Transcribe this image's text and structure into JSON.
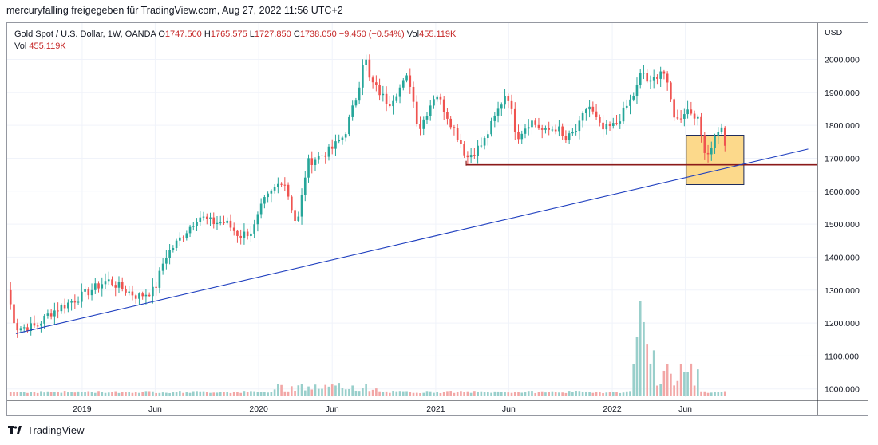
{
  "header": {
    "title": "mercuryfalling freigegeben für TradingView.com, Aug 27, 2022 11:56 UTC+2"
  },
  "legend": {
    "symbol": "Gold Spot / U.S. Dollar, 1W, OANDA",
    "o_label": "O",
    "o_value": "1747.500",
    "h_label": "H",
    "h_value": "1765.575",
    "l_label": "L",
    "l_value": "1727.850",
    "c_label": "C",
    "c_value": "1738.050",
    "change": "−9.450 (−0.54%)",
    "vol_label": "Vol",
    "vol_value": "455.119K",
    "vol2_label": "Vol",
    "vol2_value": "455.119K"
  },
  "footer": {
    "brand": "TradingView"
  },
  "colors": {
    "up": "#26a69a",
    "down": "#ef5350",
    "vol_up": "#99cfcb",
    "vol_down": "#f2a7a6",
    "trendline": "#1f3fbf",
    "support": "#8b1a1a",
    "zone_fill": "#fcd98b",
    "zone_border": "#1e2b5c",
    "grid": "#f0f3fa"
  },
  "chart_data": {
    "type": "candlestick",
    "currency": "USD",
    "y_ticks": [
      1000,
      1100,
      1200,
      1300,
      1400,
      1500,
      1600,
      1700,
      1800,
      1900,
      2000
    ],
    "y_tick_labels": [
      "1000.000",
      "1100.000",
      "1200.000",
      "1300.000",
      "1400.000",
      "1500.000",
      "1600.000",
      "1700.000",
      "1800.000",
      "1900.000",
      "2000.000"
    ],
    "ylim": [
      980,
      2110
    ],
    "x_ticks": [
      "2019",
      "Jun",
      "2020",
      "Jun",
      "2021",
      "Jun",
      "2022",
      "Jun"
    ],
    "x_tick_dates": [
      "2019-01-01",
      "2019-06-01",
      "2020-01-01",
      "2020-06-01",
      "2021-01-01",
      "2021-06-01",
      "2022-01-01",
      "2022-06-01"
    ],
    "xlim": [
      "2018-07-30",
      "2023-03-01"
    ],
    "anchors": [
      [
        "2018-07-30",
        1300
      ],
      [
        "2018-08-17",
        1185
      ],
      [
        "2018-09-28",
        1190
      ],
      [
        "2018-10-26",
        1230
      ],
      [
        "2018-12-28",
        1280
      ],
      [
        "2019-02-22",
        1330
      ],
      [
        "2019-04-26",
        1280
      ],
      [
        "2019-05-31",
        1300
      ],
      [
        "2019-06-21",
        1400
      ],
      [
        "2019-08-30",
        1525
      ],
      [
        "2019-09-27",
        1505
      ],
      [
        "2019-10-25",
        1505
      ],
      [
        "2019-11-22",
        1465
      ],
      [
        "2019-12-20",
        1480
      ],
      [
        "2020-01-10",
        1565
      ],
      [
        "2020-02-21",
        1640
      ],
      [
        "2020-03-13",
        1530
      ],
      [
        "2020-03-20",
        1490
      ],
      [
        "2020-04-10",
        1685
      ],
      [
        "2020-05-29",
        1725
      ],
      [
        "2020-06-26",
        1770
      ],
      [
        "2020-07-24",
        1900
      ],
      [
        "2020-08-07",
        2030
      ],
      [
        "2020-08-14",
        1945
      ],
      [
        "2020-09-25",
        1865
      ],
      [
        "2020-11-06",
        1950
      ],
      [
        "2020-11-27",
        1785
      ],
      [
        "2021-01-01",
        1900
      ],
      [
        "2021-02-26",
        1735
      ],
      [
        "2021-03-05",
        1700
      ],
      [
        "2021-04-09",
        1745
      ],
      [
        "2021-05-28",
        1905
      ],
      [
        "2021-06-18",
        1765
      ],
      [
        "2021-07-16",
        1815
      ],
      [
        "2021-08-13",
        1780
      ],
      [
        "2021-09-10",
        1795
      ],
      [
        "2021-09-24",
        1750
      ],
      [
        "2021-10-22",
        1790
      ],
      [
        "2021-11-12",
        1865
      ],
      [
        "2021-12-10",
        1785
      ],
      [
        "2022-01-07",
        1800
      ],
      [
        "2022-02-18",
        1900
      ],
      [
        "2022-03-04",
        1970
      ],
      [
        "2022-03-18",
        1920
      ],
      [
        "2022-04-15",
        1975
      ],
      [
        "2022-05-13",
        1810
      ],
      [
        "2022-06-03",
        1850
      ],
      [
        "2022-06-24",
        1830
      ],
      [
        "2022-07-15",
        1705
      ],
      [
        "2022-08-12",
        1800
      ],
      [
        "2022-08-26",
        1738
      ]
    ],
    "volume_spikes": [
      [
        "2022-03-04",
        1.0
      ],
      [
        "2022-03-11",
        0.78
      ],
      [
        "2022-02-25",
        0.62
      ],
      [
        "2022-03-18",
        0.55
      ],
      [
        "2022-04-01",
        0.48
      ]
    ],
    "annotations": {
      "trendline": {
        "from": [
          "2018-08-17",
          1168
        ],
        "to": [
          "2023-02-10",
          1728
        ]
      },
      "support_line": {
        "from": [
          "2021-03-05",
          1680
        ],
        "to": [
          "2023-03-01",
          1680
        ]
      },
      "zone": {
        "from_date": "2022-06-03",
        "to_date": "2022-09-30",
        "y_high": 1770,
        "y_low": 1620
      }
    }
  }
}
